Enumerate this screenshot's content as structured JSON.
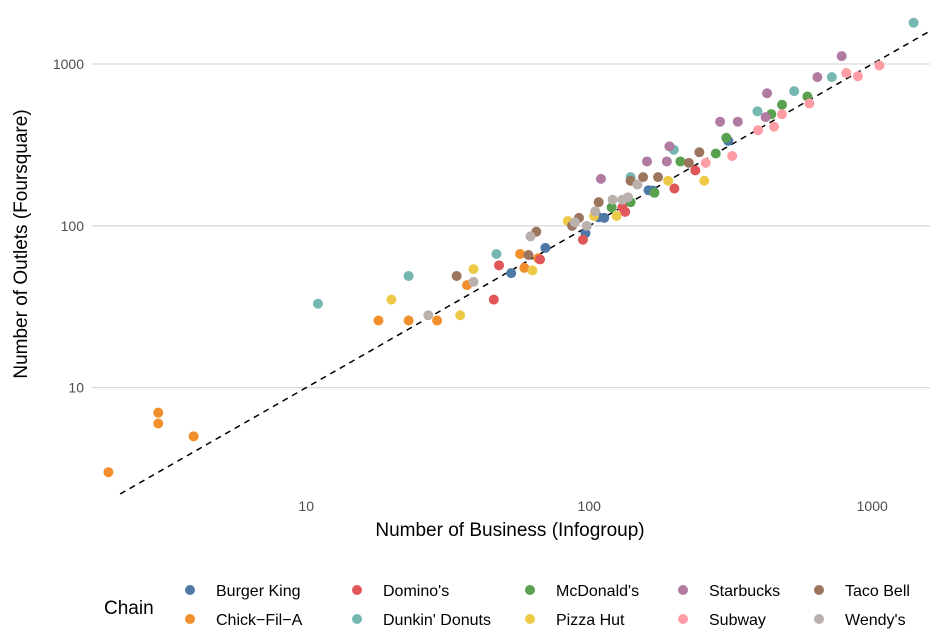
{
  "chart_data": {
    "type": "scatter",
    "title": "",
    "xlabel": "Number of Business (Infogroup)",
    "ylabel": "Number of Outlets (Foursquare)",
    "x_scale": "log10",
    "y_scale": "log10",
    "xlim": [
      1.75,
      1600
    ],
    "ylim": [
      2.2,
      2350
    ],
    "x_ticks": [
      10,
      100,
      1000
    ],
    "x_tick_labels": [
      "10",
      "100",
      "1000"
    ],
    "y_ticks": [
      10,
      100,
      1000
    ],
    "y_tick_labels": [
      "10",
      "100",
      "1000"
    ],
    "grid": "horizontal major gridlines",
    "reference_line": "y = x (dashed)",
    "legend_title": "Chain",
    "legend_position": "bottom",
    "series": [
      {
        "name": "Burger King",
        "color": "#4E79A7",
        "points": [
          [
            53,
            51
          ],
          [
            70,
            73
          ],
          [
            97,
            90
          ],
          [
            108,
            113
          ],
          [
            113,
            112
          ],
          [
            162,
            166
          ],
          [
            168,
            165
          ],
          [
            310,
            335
          ]
        ]
      },
      {
        "name": "Chick−Fil−A",
        "color": "#F28E2B",
        "points": [
          [
            2,
            3
          ],
          [
            3,
            7
          ],
          [
            3,
            6
          ],
          [
            4,
            5
          ],
          [
            18,
            26
          ],
          [
            23,
            26
          ],
          [
            29,
            26
          ],
          [
            37,
            43
          ],
          [
            57,
            67
          ],
          [
            59,
            55
          ],
          [
            66,
            63
          ]
        ]
      },
      {
        "name": "Domino's",
        "color": "#E15759",
        "points": [
          [
            46,
            35
          ],
          [
            48,
            57
          ],
          [
            67,
            62
          ],
          [
            95,
            82
          ],
          [
            131,
            130
          ],
          [
            134,
            122
          ],
          [
            200,
            170
          ],
          [
            237,
            220
          ]
        ]
      },
      {
        "name": "Dunkin' Donuts",
        "color": "#76B7B2",
        "points": [
          [
            11,
            33
          ],
          [
            23,
            49
          ],
          [
            47,
            67
          ],
          [
            140,
            200
          ],
          [
            199,
            295
          ],
          [
            393,
            510
          ],
          [
            530,
            680
          ],
          [
            720,
            830
          ],
          [
            1400,
            1800
          ]
        ]
      },
      {
        "name": "McDonald's",
        "color": "#59A14F",
        "points": [
          [
            120,
            130
          ],
          [
            140,
            140
          ],
          [
            170,
            160
          ],
          [
            210,
            250
          ],
          [
            280,
            280
          ],
          [
            305,
            350
          ],
          [
            440,
            490
          ],
          [
            480,
            560
          ],
          [
            590,
            630
          ]
        ]
      },
      {
        "name": "Pizza Hut",
        "color": "#EDC948",
        "points": [
          [
            20,
            35
          ],
          [
            35,
            28
          ],
          [
            39,
            54
          ],
          [
            63,
            53
          ],
          [
            84,
            107
          ],
          [
            104,
            115
          ],
          [
            125,
            115
          ],
          [
            190,
            190
          ],
          [
            255,
            190
          ]
        ]
      },
      {
        "name": "Starbucks",
        "color": "#B07AA1",
        "points": [
          [
            110,
            195
          ],
          [
            160,
            250
          ],
          [
            188,
            250
          ],
          [
            192,
            310
          ],
          [
            290,
            440
          ],
          [
            335,
            440
          ],
          [
            420,
            470
          ],
          [
            425,
            660
          ],
          [
            640,
            830
          ],
          [
            780,
            1120
          ]
        ]
      },
      {
        "name": "Subway",
        "color": "#FF9DA7",
        "points": [
          [
            258,
            245
          ],
          [
            320,
            270
          ],
          [
            395,
            390
          ],
          [
            450,
            410
          ],
          [
            480,
            490
          ],
          [
            600,
            570
          ],
          [
            810,
            880
          ],
          [
            890,
            840
          ],
          [
            1060,
            980
          ]
        ]
      },
      {
        "name": "Taco Bell",
        "color": "#9C755F",
        "points": [
          [
            34,
            49
          ],
          [
            61,
            66
          ],
          [
            65,
            92
          ],
          [
            87,
            100
          ],
          [
            92,
            112
          ],
          [
            108,
            140
          ],
          [
            140,
            190
          ],
          [
            155,
            200
          ],
          [
            175,
            200
          ],
          [
            225,
            245
          ],
          [
            245,
            285
          ]
        ]
      },
      {
        "name": "Wendy's",
        "color": "#BAB0AC",
        "points": [
          [
            27,
            28
          ],
          [
            39,
            45
          ],
          [
            62,
            86
          ],
          [
            89,
            105
          ],
          [
            98,
            100
          ],
          [
            105,
            123
          ],
          [
            121,
            145
          ],
          [
            131,
            145
          ],
          [
            137,
            150
          ],
          [
            148,
            180
          ]
        ]
      }
    ]
  }
}
